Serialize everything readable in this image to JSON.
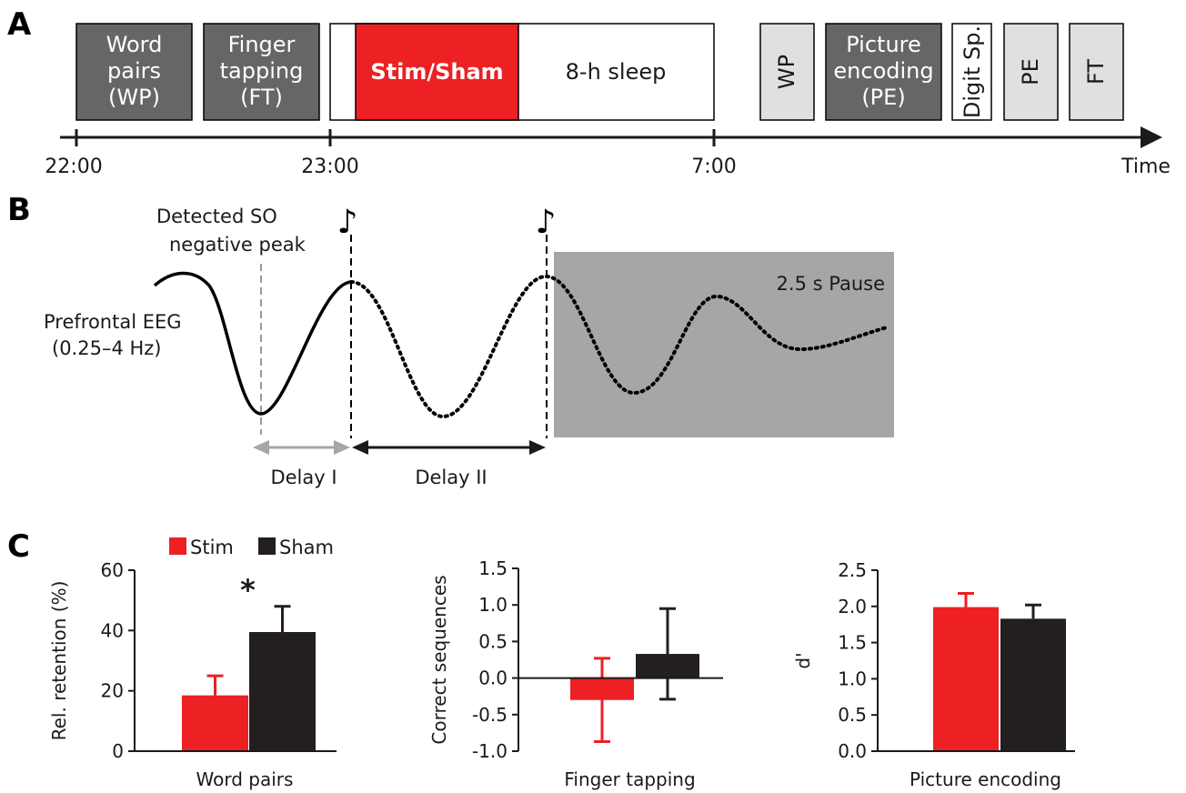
{
  "panels": {
    "a": "A",
    "b": "B",
    "c": "C"
  },
  "timeline": {
    "blocks": [
      {
        "id": "word-pairs",
        "lines": [
          "Word",
          "pairs",
          "(WP)"
        ],
        "fill": "#666666",
        "text_color": "#ffffff"
      },
      {
        "id": "finger-tapping",
        "lines": [
          "Finger",
          "tapping",
          "(FT)"
        ],
        "fill": "#666666",
        "text_color": "#ffffff"
      },
      {
        "id": "stim-sham",
        "lines": [
          "Stim/Sham"
        ],
        "fill": "#ed2024",
        "text_color": "#ffffff",
        "bold": true
      },
      {
        "id": "sleep",
        "lines": [
          "8-h sleep"
        ],
        "fill": "#ffffff",
        "text_color": "#1a1a1a"
      },
      {
        "id": "wp-retest",
        "lines": [
          "WP"
        ],
        "fill": "#e0e0e0",
        "text_color": "#1a1a1a",
        "vertical": true
      },
      {
        "id": "picture-encoding",
        "lines": [
          "Picture",
          "encoding",
          "(PE)"
        ],
        "fill": "#666666",
        "text_color": "#ffffff"
      },
      {
        "id": "digit-span",
        "lines": [
          "Digit Sp."
        ],
        "fill": "#ffffff",
        "text_color": "#1a1a1a",
        "vertical": true
      },
      {
        "id": "pe-retest",
        "lines": [
          "PE"
        ],
        "fill": "#e0e0e0",
        "text_color": "#1a1a1a",
        "vertical": true
      },
      {
        "id": "ft-retest",
        "lines": [
          "FT"
        ],
        "fill": "#e0e0e0",
        "text_color": "#1a1a1a",
        "vertical": true
      }
    ],
    "ticks": [
      "22:00",
      "23:00",
      "7:00"
    ],
    "axis_label": "Time"
  },
  "eeg": {
    "label_lines": [
      "Prefrontal EEG",
      "(0.25–4 Hz)"
    ],
    "detected_lines": [
      "Detected SO",
      "negative peak"
    ],
    "pause_label": "2.5 s Pause",
    "delay1": "Delay I",
    "delay2": "Delay II",
    "note_glyph": "♪"
  },
  "legend": [
    {
      "name": "Stim",
      "color": "#ed2024"
    },
    {
      "name": "Sham",
      "color": "#231f20"
    }
  ],
  "colors": {
    "stim": "#ed2024",
    "sham": "#231f20",
    "dark_block": "#666666",
    "light_block": "#e0e0e0",
    "pause": "#a6a6a6"
  },
  "chart_data": [
    {
      "type": "bar",
      "xlabel": "Word pairs",
      "ylabel": "Rel. retention (%)",
      "ylim": [
        0,
        60
      ],
      "yticks": [
        "0",
        "20",
        "40",
        "60"
      ],
      "series": [
        {
          "name": "Stim",
          "value": 18.5,
          "error": 6.5
        },
        {
          "name": "Sham",
          "value": 39.5,
          "error": 8.5
        }
      ],
      "significance": "*"
    },
    {
      "type": "bar",
      "xlabel": "Finger tapping",
      "ylabel": "Correct sequences",
      "ylim": [
        -1.0,
        1.5
      ],
      "yticks": [
        "-1.0",
        "-0.5",
        "0.0",
        "0.5",
        "1.0",
        "1.5"
      ],
      "series": [
        {
          "name": "Stim",
          "value": -0.3,
          "error": 0.57
        },
        {
          "name": "Sham",
          "value": 0.33,
          "error": 0.62
        }
      ]
    },
    {
      "type": "bar",
      "xlabel": "Picture encoding",
      "ylabel": "d'",
      "ylim": [
        0.0,
        2.5
      ],
      "yticks": [
        "0.0",
        "0.5",
        "1.0",
        "1.5",
        "2.0",
        "2.5"
      ],
      "series": [
        {
          "name": "Stim",
          "value": 1.99,
          "error": 0.19
        },
        {
          "name": "Sham",
          "value": 1.83,
          "error": 0.19
        }
      ]
    }
  ]
}
